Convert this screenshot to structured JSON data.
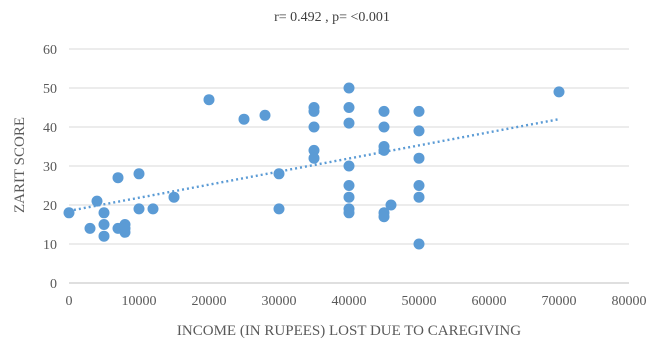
{
  "chart_data": {
    "type": "scatter",
    "annotation": "r= 0.492 , p= <0.001",
    "xlabel": "INCOME (IN RUPEES) LOST DUE TO CAREGIVING",
    "ylabel": "ZARIT SCORE",
    "xlim": [
      0,
      80000
    ],
    "ylim": [
      0,
      60
    ],
    "x_ticks": [
      0,
      10000,
      20000,
      30000,
      40000,
      50000,
      60000,
      70000,
      80000
    ],
    "y_ticks": [
      0,
      10,
      20,
      30,
      40,
      50,
      60
    ],
    "grid": "horizontal",
    "legend": "none",
    "color": "#5b9bd5",
    "points": [
      [
        0,
        18
      ],
      [
        3000,
        14
      ],
      [
        4000,
        21
      ],
      [
        5000,
        18
      ],
      [
        5000,
        15
      ],
      [
        5000,
        12
      ],
      [
        7000,
        27
      ],
      [
        7000,
        14
      ],
      [
        8000,
        15
      ],
      [
        8000,
        14
      ],
      [
        8000,
        13
      ],
      [
        10000,
        28
      ],
      [
        10000,
        19
      ],
      [
        12000,
        19
      ],
      [
        15000,
        22
      ],
      [
        20000,
        47
      ],
      [
        25000,
        42
      ],
      [
        28000,
        43
      ],
      [
        30000,
        28
      ],
      [
        30000,
        19
      ],
      [
        35000,
        45
      ],
      [
        35000,
        44
      ],
      [
        35000,
        40
      ],
      [
        35000,
        34
      ],
      [
        35000,
        32
      ],
      [
        40000,
        50
      ],
      [
        40000,
        45
      ],
      [
        40000,
        41
      ],
      [
        40000,
        30
      ],
      [
        40000,
        25
      ],
      [
        40000,
        22
      ],
      [
        40000,
        19
      ],
      [
        40000,
        18
      ],
      [
        45000,
        44
      ],
      [
        45000,
        40
      ],
      [
        45000,
        35
      ],
      [
        45000,
        34
      ],
      [
        45000,
        18
      ],
      [
        45000,
        17
      ],
      [
        46000,
        20
      ],
      [
        50000,
        44
      ],
      [
        50000,
        39
      ],
      [
        50000,
        32
      ],
      [
        50000,
        25
      ],
      [
        50000,
        22
      ],
      [
        50000,
        10
      ],
      [
        70000,
        49
      ]
    ],
    "trendline": {
      "type": "linear",
      "x": [
        0,
        70000
      ],
      "y": [
        18.5,
        42
      ]
    }
  }
}
